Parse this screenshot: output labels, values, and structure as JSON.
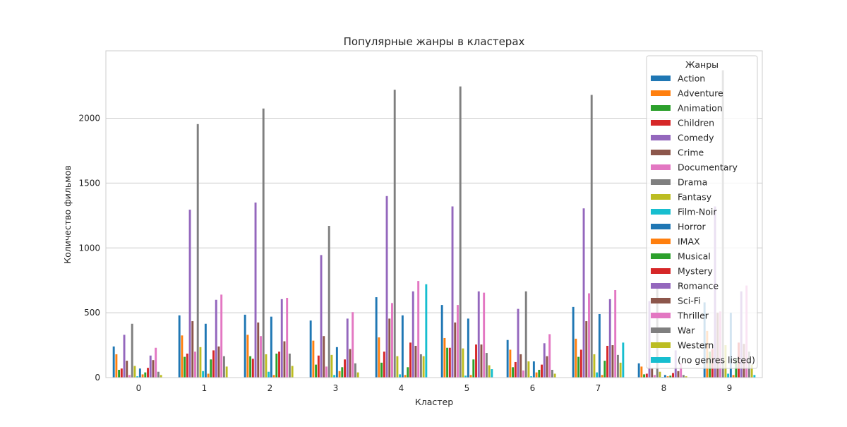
{
  "chart_data": {
    "type": "bar",
    "title": "Популярные жанры в кластерах",
    "xlabel": "Кластер",
    "ylabel": "Количество фильмов",
    "ylim": [
      0,
      2520
    ],
    "yticks": [
      0,
      500,
      1000,
      1500,
      2000
    ],
    "grid": true,
    "legend_title": "Жанры",
    "legend_position": "top-right",
    "categories": [
      "0",
      "1",
      "2",
      "3",
      "4",
      "5",
      "6",
      "7",
      "8",
      "9"
    ],
    "series": [
      {
        "name": "Action",
        "color": "#1f77b4",
        "values": [
          240,
          480,
          485,
          440,
          620,
          560,
          290,
          545,
          110,
          580
        ]
      },
      {
        "name": "Adventure",
        "color": "#ff7f0e",
        "values": [
          180,
          325,
          330,
          285,
          310,
          305,
          215,
          300,
          85,
          360
        ]
      },
      {
        "name": "Animation",
        "color": "#2ca02c",
        "values": [
          60,
          160,
          165,
          100,
          115,
          230,
          80,
          160,
          25,
          200
        ]
      },
      {
        "name": "Children",
        "color": "#d62728",
        "values": [
          70,
          185,
          145,
          170,
          200,
          230,
          120,
          215,
          30,
          220
        ]
      },
      {
        "name": "Comedy",
        "color": "#9467bd",
        "values": [
          330,
          1295,
          1350,
          945,
          1400,
          1320,
          530,
          1305,
          590,
          1320
        ]
      },
      {
        "name": "Crime",
        "color": "#8c564b",
        "values": [
          130,
          435,
          425,
          320,
          455,
          425,
          180,
          435,
          70,
          500
        ]
      },
      {
        "name": "Documentary",
        "color": "#e377c2",
        "values": [
          20,
          200,
          320,
          85,
          575,
          560,
          55,
          650,
          20,
          510
        ]
      },
      {
        "name": "Drama",
        "color": "#7f7f7f",
        "values": [
          415,
          1955,
          2075,
          1170,
          2220,
          2245,
          665,
          2180,
          690,
          2370
        ]
      },
      {
        "name": "Fantasy",
        "color": "#bcbd22",
        "values": [
          90,
          235,
          180,
          175,
          165,
          225,
          125,
          180,
          45,
          250
        ]
      },
      {
        "name": "Film-Noir",
        "color": "#17becf",
        "values": [
          10,
          50,
          45,
          20,
          25,
          15,
          10,
          40,
          5,
          30
        ]
      },
      {
        "name": "Horror",
        "color": "#1f77b4",
        "values": [
          70,
          415,
          470,
          235,
          480,
          455,
          125,
          490,
          20,
          500
        ]
      },
      {
        "name": "IMAX",
        "color": "#ff7f0e",
        "values": [
          25,
          30,
          20,
          50,
          20,
          20,
          40,
          20,
          10,
          20
        ]
      },
      {
        "name": "Musical",
        "color": "#2ca02c",
        "values": [
          40,
          140,
          185,
          80,
          80,
          140,
          60,
          130,
          15,
          150
        ]
      },
      {
        "name": "Mystery",
        "color": "#d62728",
        "values": [
          75,
          210,
          200,
          140,
          270,
          255,
          100,
          245,
          35,
          270
        ]
      },
      {
        "name": "Romance",
        "color": "#9467bd",
        "values": [
          170,
          600,
          605,
          455,
          665,
          665,
          265,
          605,
          210,
          665
        ]
      },
      {
        "name": "Sci-Fi",
        "color": "#8c564b",
        "values": [
          135,
          240,
          280,
          220,
          245,
          255,
          165,
          250,
          50,
          260
        ]
      },
      {
        "name": "Thriller",
        "color": "#e377c2",
        "values": [
          230,
          640,
          615,
          505,
          745,
          655,
          335,
          675,
          110,
          710
        ]
      },
      {
        "name": "War",
        "color": "#7f7f7f",
        "values": [
          45,
          165,
          185,
          110,
          180,
          190,
          60,
          175,
          20,
          200
        ]
      },
      {
        "name": "Western",
        "color": "#bcbd22",
        "values": [
          20,
          85,
          90,
          40,
          165,
          95,
          30,
          115,
          10,
          100
        ]
      },
      {
        "name": "(no genres listed)",
        "color": "#17becf",
        "values": [
          0,
          0,
          0,
          0,
          720,
          65,
          0,
          270,
          0,
          20
        ]
      }
    ]
  }
}
